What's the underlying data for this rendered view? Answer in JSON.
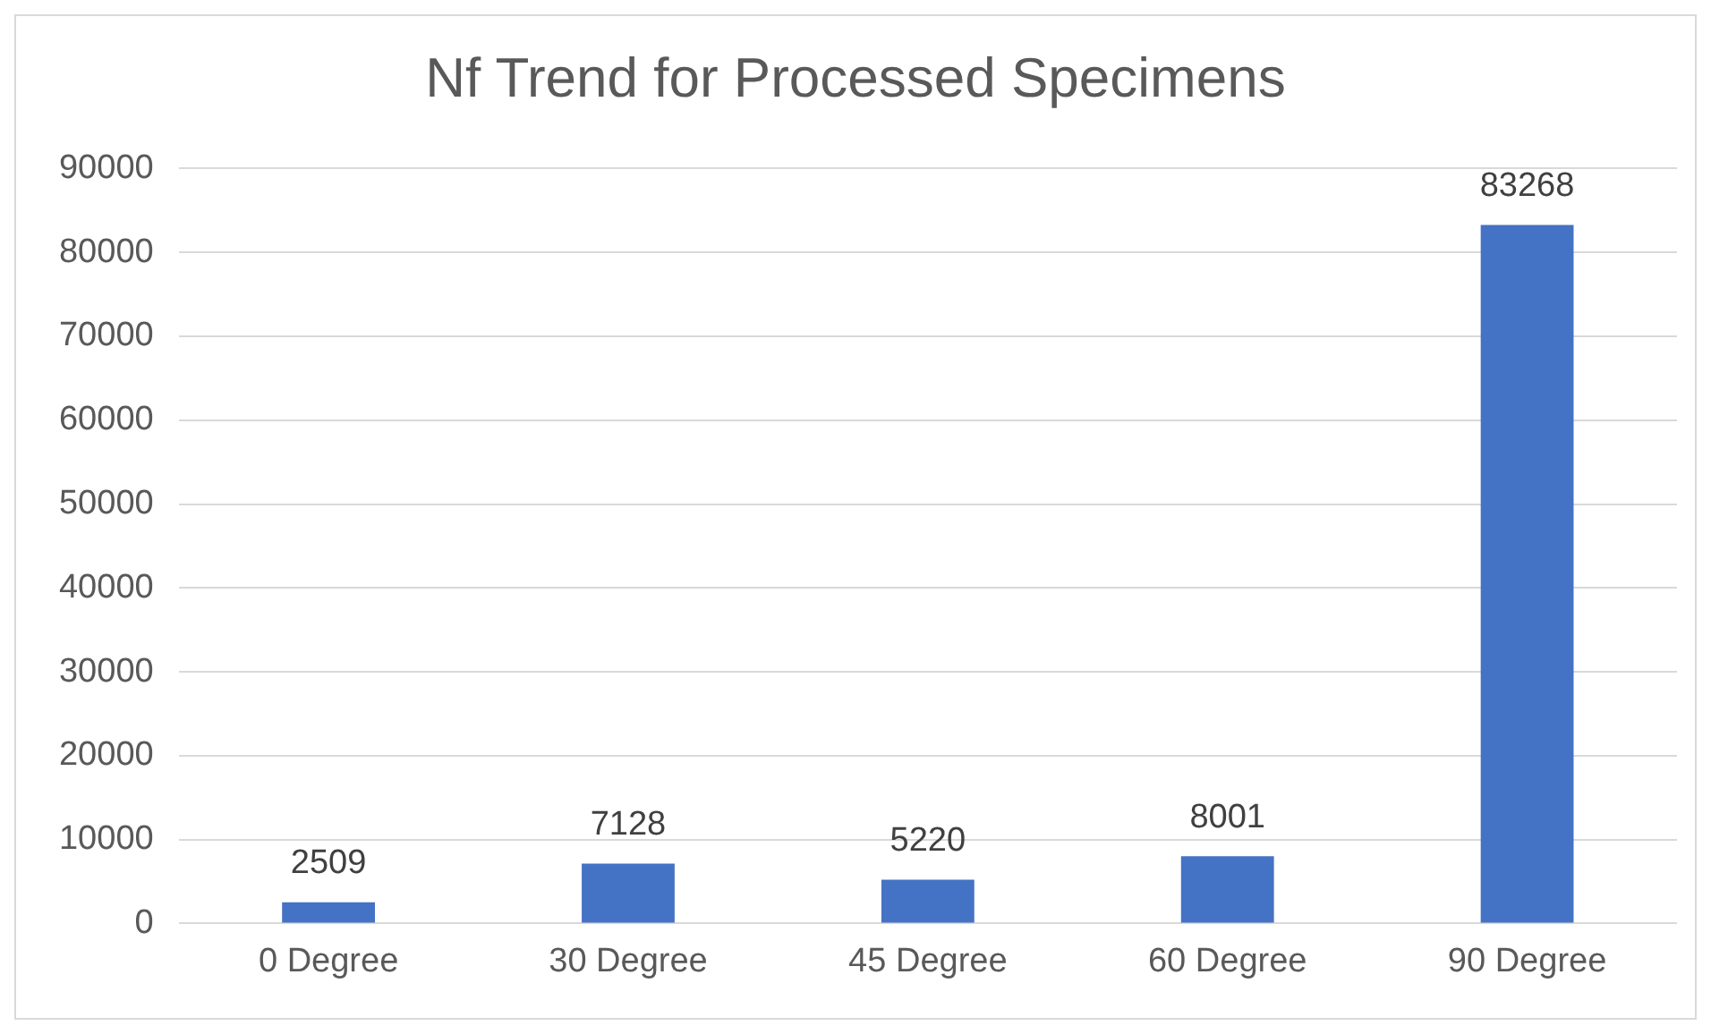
{
  "chart_data": {
    "type": "bar",
    "title": "Nf Trend for Processed Specimens",
    "categories": [
      "0 Degree",
      "30 Degree",
      "45 Degree",
      "60 Degree",
      "90 Degree"
    ],
    "values": [
      2509,
      7128,
      5220,
      8001,
      83268
    ],
    "color": "#4472c4",
    "ylim": [
      0,
      90000
    ],
    "yticks": [
      0,
      10000,
      20000,
      30000,
      40000,
      50000,
      60000,
      70000,
      80000,
      90000
    ],
    "grid": "y",
    "data_labels": true
  }
}
